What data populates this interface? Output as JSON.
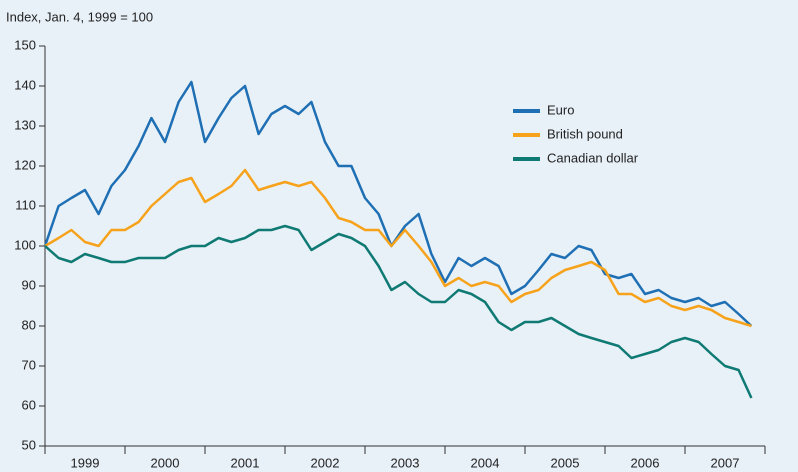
{
  "chart_data": {
    "type": "line",
    "y_axis_label": "Index, Jan. 4, 1999 = 100",
    "x": [
      1999,
      1999.17,
      1999.33,
      1999.5,
      1999.67,
      1999.83,
      2000,
      2000.17,
      2000.33,
      2000.5,
      2000.67,
      2000.83,
      2001,
      2001.17,
      2001.33,
      2001.5,
      2001.67,
      2001.83,
      2002,
      2002.17,
      2002.33,
      2002.5,
      2002.67,
      2002.83,
      2003,
      2003.17,
      2003.33,
      2003.5,
      2003.67,
      2003.83,
      2004,
      2004.17,
      2004.33,
      2004.5,
      2004.67,
      2004.83,
      2005,
      2005.17,
      2005.33,
      2005.5,
      2005.67,
      2005.83,
      2006,
      2006.17,
      2006.33,
      2006.5,
      2006.67,
      2006.83,
      2007,
      2007.17,
      2007.33,
      2007.5,
      2007.67,
      2007.83
    ],
    "series": [
      {
        "name": "Euro",
        "color": "#1f6fb4",
        "values": [
          100,
          110,
          112,
          114,
          108,
          115,
          119,
          125,
          132,
          126,
          136,
          141,
          126,
          132,
          137,
          140,
          128,
          133,
          135,
          133,
          136,
          126,
          120,
          120,
          112,
          108,
          100,
          105,
          108,
          98,
          91,
          97,
          95,
          97,
          95,
          88,
          90,
          94,
          98,
          97,
          100,
          99,
          93,
          92,
          93,
          88,
          89,
          87,
          86,
          87,
          85,
          86,
          83,
          80
        ]
      },
      {
        "name": "British pound",
        "color": "#f7a21b",
        "values": [
          100,
          102,
          104,
          101,
          100,
          104,
          104,
          106,
          110,
          113,
          116,
          117,
          111,
          113,
          115,
          119,
          114,
          115,
          116,
          115,
          116,
          112,
          107,
          106,
          104,
          104,
          100,
          104,
          100,
          96,
          90,
          92,
          90,
          91,
          90,
          86,
          88,
          89,
          92,
          94,
          95,
          96,
          94,
          88,
          88,
          86,
          87,
          85,
          84,
          85,
          84,
          82,
          81,
          80
        ]
      },
      {
        "name": "Canadian dollar",
        "color": "#0f7a73",
        "values": [
          100,
          97,
          96,
          98,
          97,
          96,
          96,
          97,
          97,
          97,
          99,
          100,
          100,
          102,
          101,
          102,
          104,
          104,
          105,
          104,
          99,
          101,
          103,
          102,
          100,
          95,
          89,
          91,
          88,
          86,
          86,
          89,
          88,
          86,
          81,
          79,
          81,
          81,
          82,
          80,
          78,
          77,
          76,
          75,
          72,
          73,
          74,
          76,
          77,
          76,
          73,
          70,
          69,
          62
        ]
      }
    ],
    "xlim": [
      1999,
      2008
    ],
    "xticks": [
      {
        "value": 1999.5,
        "label": "1999"
      },
      {
        "value": 2000.5,
        "label": "2000"
      },
      {
        "value": 2001.5,
        "label": "2001"
      },
      {
        "value": 2002.5,
        "label": "2002"
      },
      {
        "value": 2003.5,
        "label": "2003"
      },
      {
        "value": 2004.5,
        "label": "2004"
      },
      {
        "value": 2005.5,
        "label": "2005"
      },
      {
        "value": 2006.5,
        "label": "2006"
      },
      {
        "value": 2007.5,
        "label": "2007"
      }
    ],
    "x_boundary_ticks": [
      1999,
      2000,
      2001,
      2002,
      2003,
      2004,
      2005,
      2006,
      2007,
      2008
    ],
    "ylim": [
      50,
      150
    ],
    "yticks": [
      50,
      60,
      70,
      80,
      90,
      100,
      110,
      120,
      130,
      140,
      150
    ],
    "grid": false
  }
}
